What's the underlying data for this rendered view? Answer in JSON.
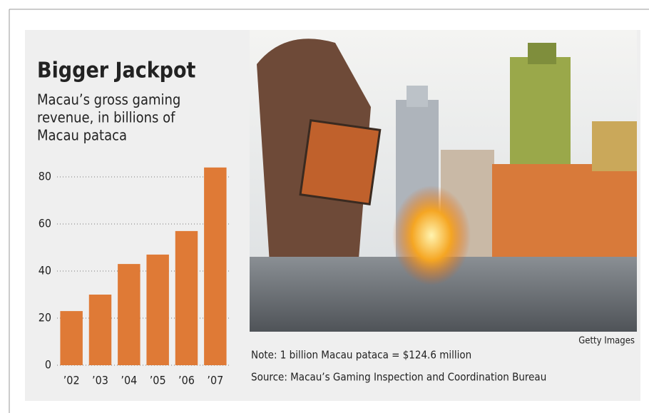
{
  "chart_data": {
    "type": "bar",
    "title": "Bigger Jackpot",
    "subtitle": [
      "Macau’s gross gaming",
      "revenue, in billions of",
      "Macau pataca"
    ],
    "categories": [
      "’02",
      "’03",
      "’04",
      "’05",
      "’06",
      "’07"
    ],
    "values": [
      23,
      30,
      43,
      47,
      57,
      84
    ],
    "color": "#df7a36",
    "ylim": [
      0,
      85
    ],
    "yticks": [
      0,
      20,
      40,
      60,
      80
    ],
    "grid": true,
    "photo_credit": "Getty Images",
    "note": "Note: 1 billion Macau pataca = $124.6 million",
    "source": "Source: Macau’s Gaming Inspection and Coordination Bureau"
  }
}
